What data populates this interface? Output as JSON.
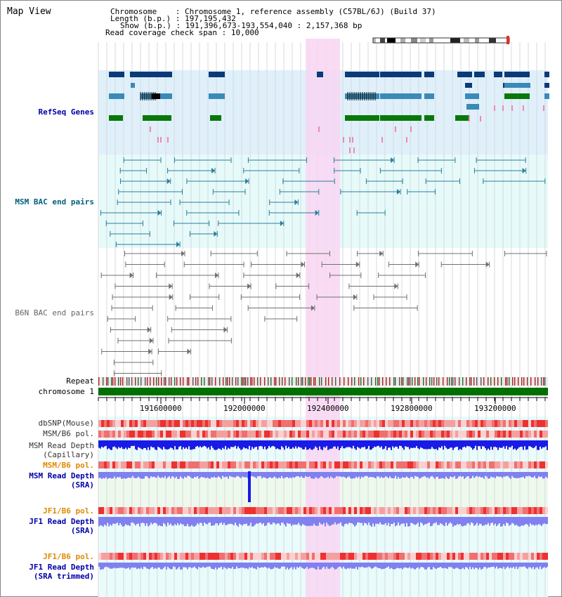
{
  "header": {
    "title": "Map View",
    "chromosome_key": "Chromosome",
    "chromosome_val": "Chromosome 1, reference assembly (C57BL/6J) (Build 37)",
    "length_key": "Length (b.p.)",
    "length_val": "197,195,432",
    "show_key": "Show (b.p.)",
    "show_val": "191,396,673-193,554,040 : 2,157,368 bp",
    "coverage_key": "Read coverage check span",
    "coverage_val": "10,000"
  },
  "tracks": {
    "refseq": "RefSeq Genes",
    "msm_bac": "MSM BAC end pairs",
    "b6n_bac": "B6N BAC end pairs",
    "repeat": "Repeat",
    "chromosome": "chromosome 1",
    "dbsnp": "dbSNP(Mouse)",
    "msm_b6_pol_1": "MSM/B6 pol.",
    "msm_depth_cap_1": "MSM Read Depth",
    "msm_depth_cap_2": "(Capillary)",
    "msm_b6_pol_2": "MSM/B6 pol.",
    "msm_depth_sra_1": "MSM Read Depth",
    "msm_depth_sra_2": "(SRA)",
    "jf1_pol_1": "JF1/B6 pol.",
    "jf1_depth_sra_1": "JF1 Read Depth",
    "jf1_depth_sra_2": "(SRA)",
    "jf1_pol_2": "JF1/B6 pol.",
    "jf1_depth_trim_1": "JF1 Read Depth",
    "jf1_depth_trim_2": "(SRA trimmed)"
  },
  "axis": {
    "ticks": [
      "191600000",
      "192000000",
      "192400000",
      "192800000",
      "193200000"
    ]
  },
  "colors": {
    "refseq_bg": "#dff0fb",
    "msm_bg": "#e6fafa",
    "highlight": "#f8d6f2",
    "gene_dark": "#0a3a78",
    "gene_mid": "#3a8ab8",
    "gene_green": "#087808",
    "bac_teal": "#2a7f9a",
    "bac_gray": "#707070",
    "chrom_green": "#007000",
    "depth_blue": "#1a1ae6",
    "depth_light": "#8080f0"
  }
}
